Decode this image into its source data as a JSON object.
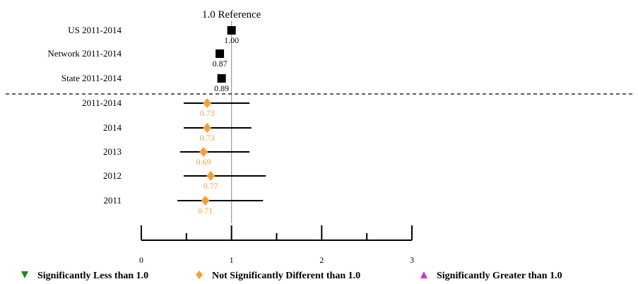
{
  "chart_data": {
    "type": "forest",
    "reference": {
      "value": 1.0,
      "label": "1.0 Reference"
    },
    "xaxis": {
      "min": 0,
      "max": 3,
      "ticks": [
        0,
        1,
        2,
        3
      ],
      "tick_labels": [
        "0",
        "1",
        "2",
        "3"
      ],
      "minor_ticks": [
        0.5,
        1.5,
        2.5
      ]
    },
    "benchmarks": [
      {
        "label": "US 2011-2014",
        "value": 1.0,
        "value_label": "1.00"
      },
      {
        "label": "Network 2011-2014",
        "value": 0.87,
        "value_label": "0.87"
      },
      {
        "label": "State 2011-2014",
        "value": 0.89,
        "value_label": "0.89"
      }
    ],
    "rows": [
      {
        "label": "2011-2014",
        "value": 0.73,
        "value_label": "0.73",
        "ci": [
          0.47,
          1.2
        ],
        "category": "not_significant"
      },
      {
        "label": "2014",
        "value": 0.73,
        "value_label": "0.73",
        "ci": [
          0.47,
          1.22
        ],
        "category": "not_significant"
      },
      {
        "label": "2013",
        "value": 0.69,
        "value_label": "0.69",
        "ci": [
          0.43,
          1.2
        ],
        "category": "not_significant"
      },
      {
        "label": "2012",
        "value": 0.77,
        "value_label": "0.77",
        "ci": [
          0.47,
          1.38
        ],
        "category": "not_significant"
      },
      {
        "label": "2011",
        "value": 0.71,
        "value_label": "0.71",
        "ci": [
          0.4,
          1.35
        ],
        "category": "not_significant"
      }
    ],
    "legend": [
      {
        "key": "less",
        "label": "Significantly Less than 1.0",
        "symbol": "triangle-down",
        "color": "#1a8a1a"
      },
      {
        "key": "not_significant",
        "label": "Not Significantly Different than 1.0",
        "symbol": "diamond",
        "color": "#f5a03c"
      },
      {
        "key": "greater",
        "label": "Significantly Greater than 1.0",
        "symbol": "triangle-up",
        "color": "#cc33cc"
      }
    ],
    "colors": {
      "benchmark": "#000000",
      "not_significant": "#f5a03c",
      "reference_line": "#999999"
    }
  }
}
